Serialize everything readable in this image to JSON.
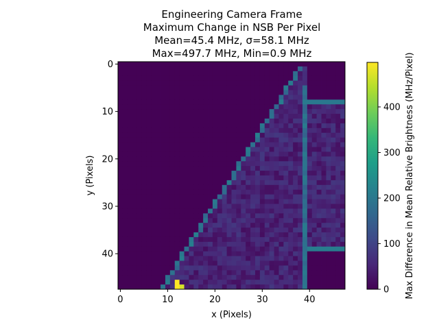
{
  "chart_data": {
    "type": "heatmap",
    "title_lines": [
      "Engineering Camera Frame",
      "Maximum Change in NSB Per Pixel",
      "Mean=45.4 MHz, σ=58.1 MHz",
      "Max=497.7 MHz, Min=0.9 MHz"
    ],
    "xlabel": "x (Pixels)",
    "ylabel": "y (Pixels)",
    "colorbar_label": "Max Difference in Mean Relative Brightness (MHz/Pixel)",
    "colormap": "viridis",
    "clim": [
      0,
      497.7
    ],
    "grid": false,
    "xlim": [
      -0.5,
      47.5
    ],
    "ylim": [
      47.5,
      -0.5
    ],
    "x_ticks": [
      0,
      10,
      20,
      30,
      40
    ],
    "y_ticks": [
      0,
      10,
      20,
      30,
      40
    ],
    "colorbar_ticks": [
      0,
      100,
      200,
      300,
      400
    ],
    "grid_size": [
      48,
      48
    ],
    "stats": {
      "mean": 45.4,
      "sigma": 58.1,
      "max": 497.7,
      "min": 0.9
    },
    "background_value": 1,
    "edge_value": 180,
    "interior_value": 45,
    "hot_pixels": [
      {
        "x": 12,
        "y": 46,
        "value": 497.7
      },
      {
        "x": 12,
        "y": 47,
        "value": 497.7
      },
      {
        "x": 13,
        "y": 47,
        "value": 470
      }
    ],
    "vertical_edge": {
      "x": 39,
      "y_start": 5,
      "y_end": 47,
      "value": 180
    },
    "horizontal_edges": [
      {
        "y": 8,
        "x_start": 40,
        "x_end": 47,
        "value": 200
      },
      {
        "y": 39,
        "x_start": 40,
        "x_end": 47,
        "value": 210
      }
    ],
    "diagonal_edge": {
      "points": [
        [
          38,
          1
        ],
        [
          9,
          47
        ]
      ],
      "value": 190
    }
  }
}
